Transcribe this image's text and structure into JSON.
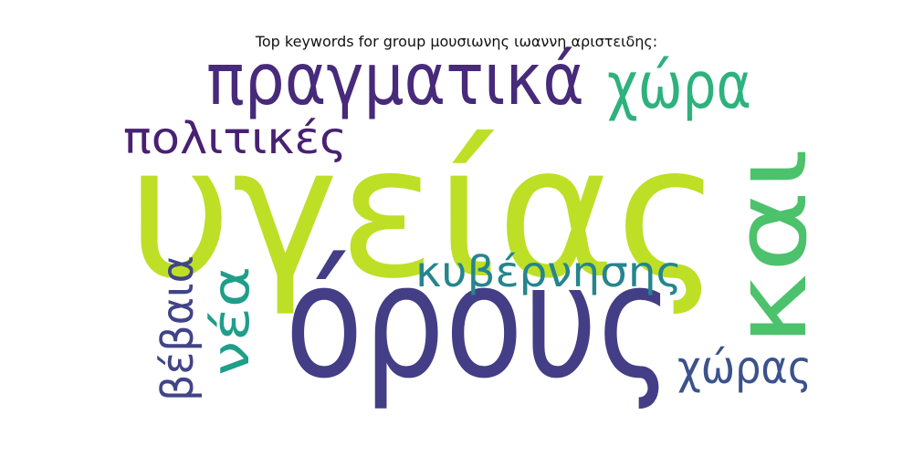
{
  "title": "Top keywords for group μουσιωνης ιωαννη αριστειδης:",
  "words": [
    {
      "text": "υγείας",
      "color": "#bddf26"
    },
    {
      "text": "όρους",
      "color": "#433e85"
    },
    {
      "text": "και",
      "color": "#4cc26c"
    },
    {
      "text": "πραγματικά",
      "color": "#472a7a"
    },
    {
      "text": "χώρα",
      "color": "#2db27d"
    },
    {
      "text": "πολιτικές",
      "color": "#482173"
    },
    {
      "text": "κυβέρνησης",
      "color": "#25858e"
    },
    {
      "text": "νέα",
      "color": "#1f9e89"
    },
    {
      "text": "βέβαια",
      "color": "#414487"
    },
    {
      "text": "χώρας",
      "color": "#3b528b"
    }
  ]
}
